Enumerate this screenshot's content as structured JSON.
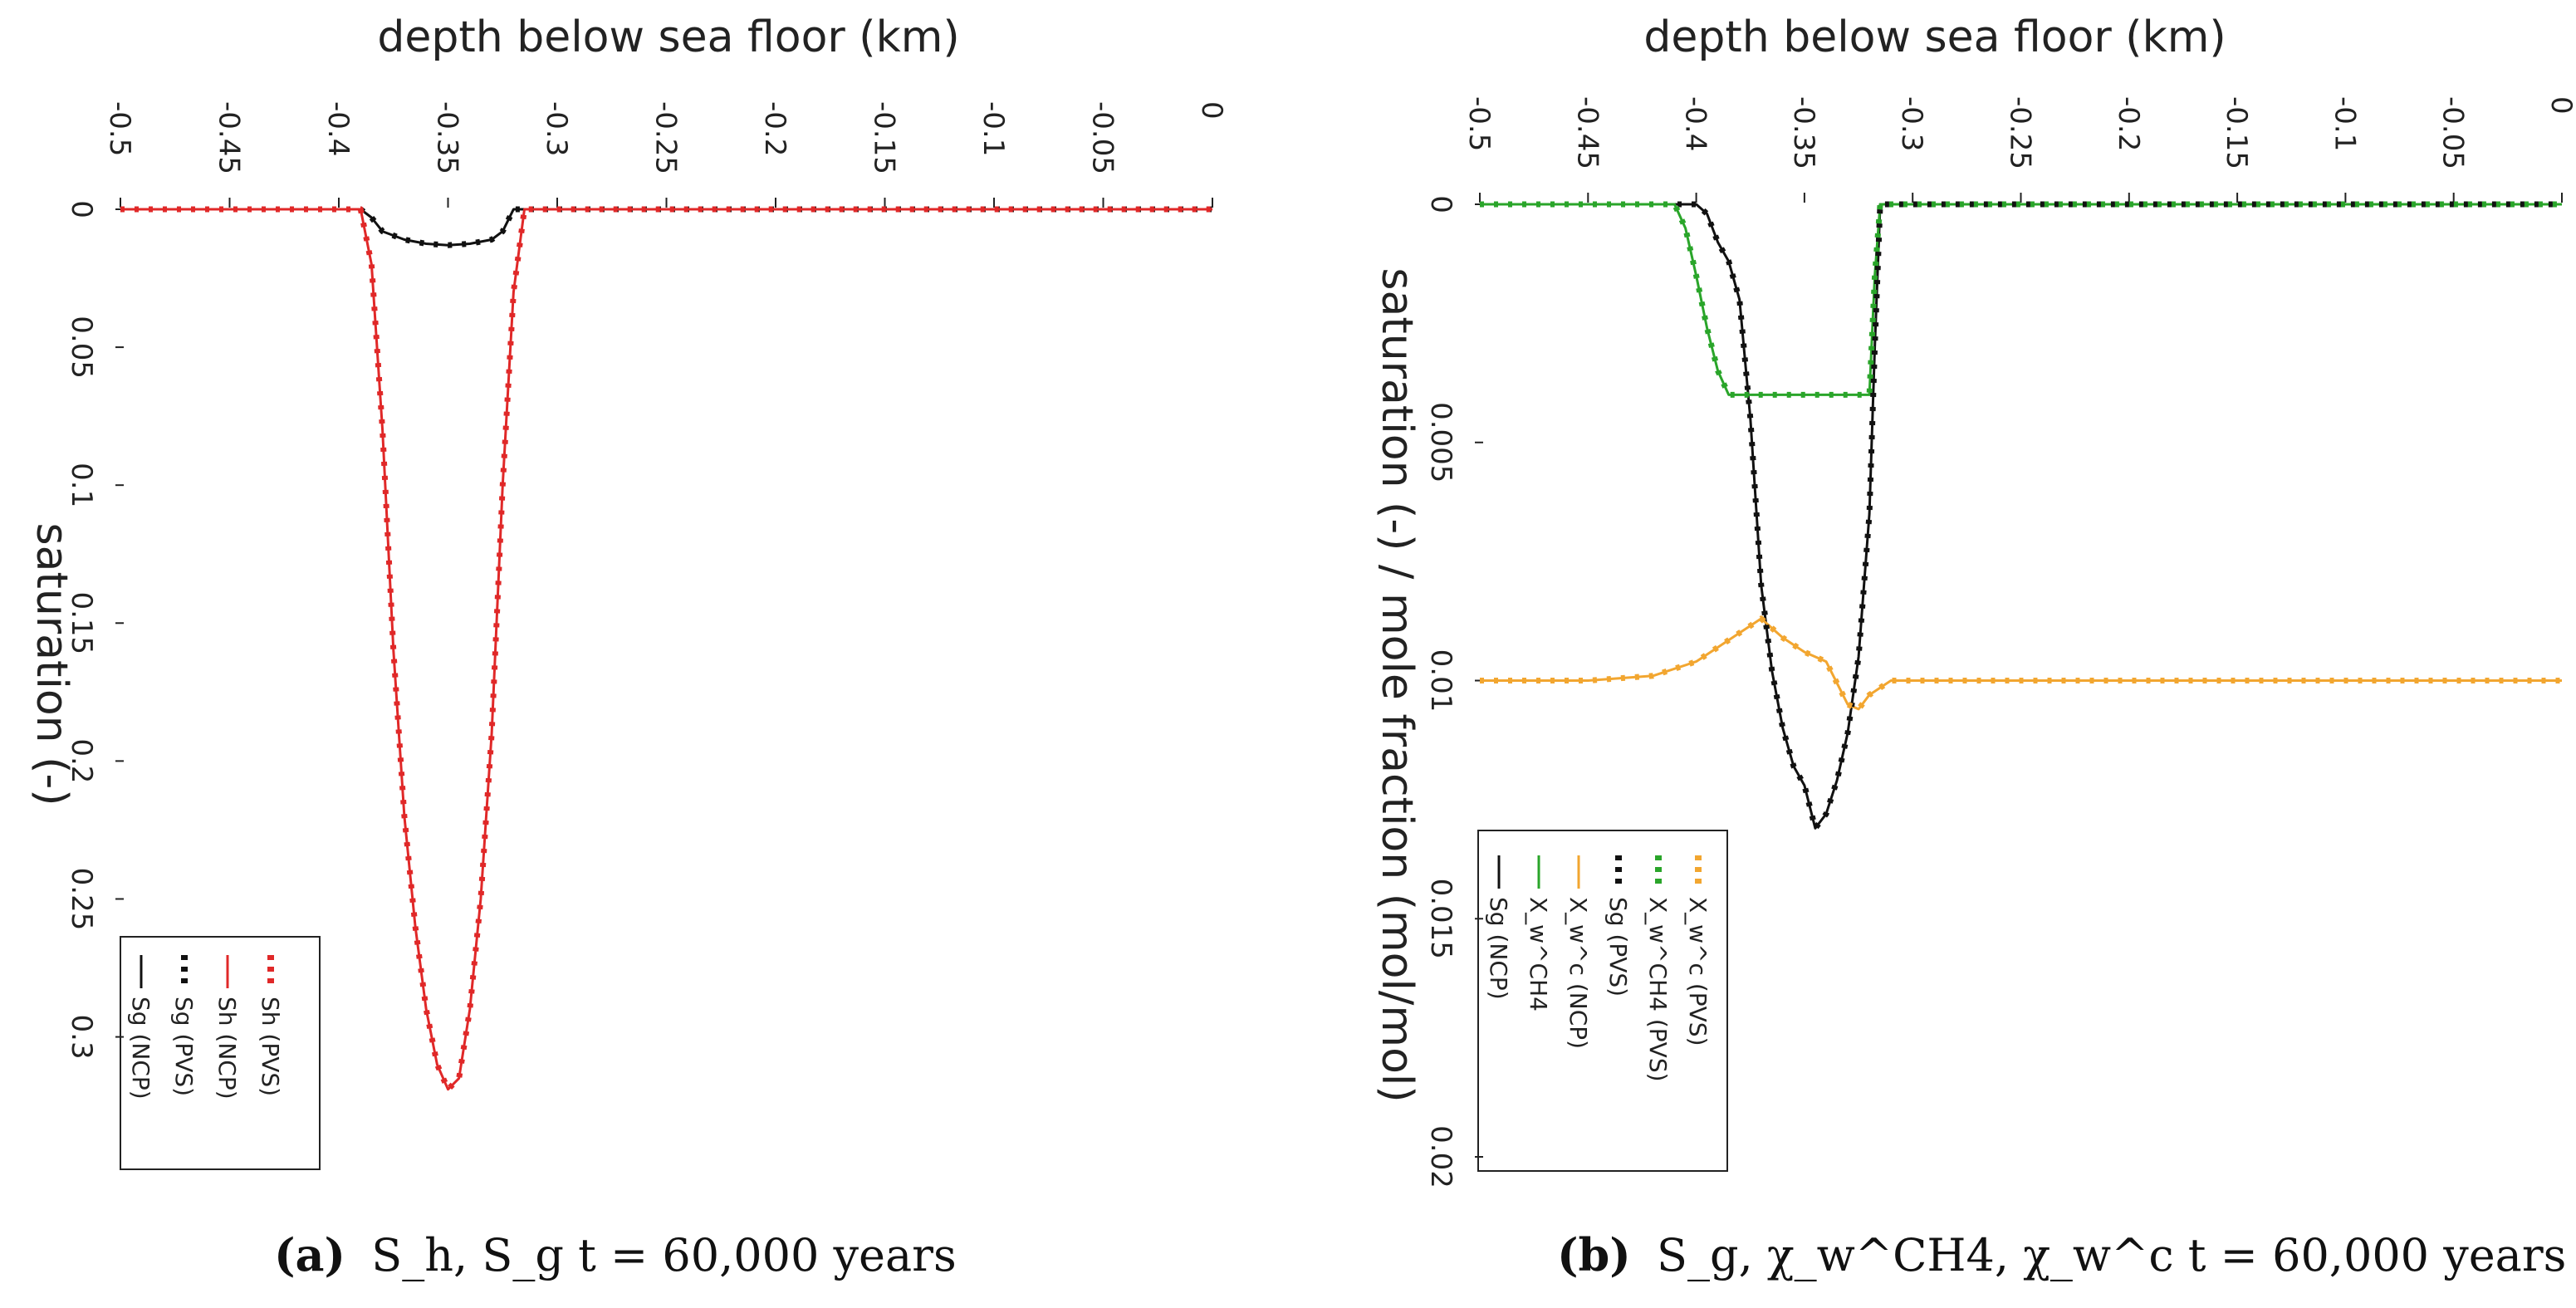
{
  "chart_data": [
    {
      "type": "line",
      "panel": "a",
      "xlabel": "depth below sea floor (km)",
      "ylabel": "saturation (-)",
      "xlim": [
        -0.5,
        0
      ],
      "ylim": [
        0,
        0.32
      ],
      "x_ticks": [
        -0.5,
        -0.45,
        -0.4,
        -0.35,
        -0.3,
        -0.25,
        -0.2,
        -0.15,
        -0.1,
        -0.05,
        0
      ],
      "x_tick_labels": [
        "-0.5",
        "-0.45",
        "-0.4",
        "-0.35",
        "-0.3",
        "-0.25",
        "-0.2",
        "-0.15",
        "-0.1",
        "-0.05",
        "0"
      ],
      "y_ticks": [
        0,
        0.05,
        0.1,
        0.15,
        0.2,
        0.25,
        0.3
      ],
      "y_tick_labels": [
        "0",
        "0.05",
        "0.1",
        "0.15",
        "0.2",
        "0.25",
        "0.3"
      ],
      "legend_position": "bottom-left",
      "series": [
        {
          "name": "Sg (NCP)",
          "color": "#111111",
          "style": "solid",
          "x": [
            -0.5,
            -0.39,
            -0.385,
            -0.38,
            -0.37,
            -0.36,
            -0.35,
            -0.34,
            -0.33,
            -0.325,
            -0.32,
            0
          ],
          "y": [
            0,
            0,
            0.003,
            0.008,
            0.011,
            0.0125,
            0.013,
            0.0125,
            0.011,
            0.008,
            0,
            0
          ]
        },
        {
          "name": "Sg (PVS)",
          "color": "#111111",
          "style": "dotted",
          "x": [
            -0.5,
            -0.39,
            -0.385,
            -0.38,
            -0.37,
            -0.36,
            -0.35,
            -0.34,
            -0.33,
            -0.325,
            -0.32,
            0
          ],
          "y": [
            0,
            0,
            0.003,
            0.008,
            0.011,
            0.0125,
            0.013,
            0.0125,
            0.011,
            0.008,
            0,
            0
          ]
        },
        {
          "name": "Sh (NCP)",
          "color": "#e02828",
          "style": "solid",
          "x": [
            -0.5,
            -0.39,
            -0.385,
            -0.38,
            -0.375,
            -0.37,
            -0.365,
            -0.36,
            -0.355,
            -0.35,
            -0.345,
            -0.34,
            -0.335,
            -0.33,
            -0.325,
            -0.32,
            -0.315,
            0
          ],
          "y": [
            0,
            0,
            0.02,
            0.08,
            0.16,
            0.22,
            0.26,
            0.29,
            0.31,
            0.319,
            0.315,
            0.29,
            0.25,
            0.19,
            0.1,
            0.03,
            0,
            0
          ]
        },
        {
          "name": "Sh (PVS)",
          "color": "#e02828",
          "style": "dotted",
          "x": [
            -0.5,
            -0.39,
            -0.385,
            -0.38,
            -0.375,
            -0.37,
            -0.365,
            -0.36,
            -0.355,
            -0.35,
            -0.345,
            -0.34,
            -0.335,
            -0.33,
            -0.325,
            -0.32,
            -0.315,
            0
          ],
          "y": [
            0,
            0,
            0.02,
            0.08,
            0.16,
            0.22,
            0.26,
            0.29,
            0.31,
            0.319,
            0.315,
            0.29,
            0.25,
            0.19,
            0.1,
            0.03,
            0,
            0
          ]
        }
      ]
    },
    {
      "type": "line",
      "panel": "b",
      "xlabel": "depth below sea floor (km)",
      "ylabel": "saturation (-) / mole fraction (mol/mol)",
      "xlim": [
        -0.5,
        0
      ],
      "ylim": [
        0,
        0.02
      ],
      "x_ticks": [
        -0.5,
        -0.45,
        -0.4,
        -0.35,
        -0.3,
        -0.25,
        -0.2,
        -0.15,
        -0.1,
        -0.05,
        0
      ],
      "x_tick_labels": [
        "-0.5",
        "-0.45",
        "-0.4",
        "-0.35",
        "-0.3",
        "-0.25",
        "-0.2",
        "-0.15",
        "-0.1",
        "-0.05",
        "0"
      ],
      "y_ticks": [
        0,
        0.005,
        0.01,
        0.015,
        0.02
      ],
      "y_tick_labels": [
        "0",
        "0.005",
        "0.01",
        "0.015",
        "0.02"
      ],
      "legend_position": "bottom-left",
      "series": [
        {
          "name": "Sg (NCP)",
          "color": "#111111",
          "style": "solid",
          "x": [
            -0.5,
            -0.4,
            -0.395,
            -0.39,
            -0.385,
            -0.38,
            -0.375,
            -0.37,
            -0.365,
            -0.36,
            -0.355,
            -0.35,
            -0.345,
            -0.34,
            -0.335,
            -0.33,
            -0.325,
            -0.32,
            -0.3175,
            -0.315,
            0
          ],
          "y": [
            0,
            0,
            0.0002,
            0.0008,
            0.0012,
            0.002,
            0.0045,
            0.008,
            0.0098,
            0.011,
            0.0118,
            0.0122,
            0.0131,
            0.0128,
            0.0121,
            0.0111,
            0.0095,
            0.0065,
            0.003,
            0,
            0
          ]
        },
        {
          "name": "X_w^CH4",
          "color": "#2aa52a",
          "style": "solid",
          "x": [
            -0.5,
            -0.41,
            -0.405,
            -0.4,
            -0.395,
            -0.39,
            -0.385,
            -0.38,
            -0.32,
            -0.3175,
            -0.315,
            0
          ],
          "y": [
            0,
            0,
            0.0005,
            0.0015,
            0.0026,
            0.0035,
            0.004,
            0.004,
            0.004,
            0.0015,
            0,
            0
          ]
        },
        {
          "name": "X_w^c (NCP)",
          "color": "#f2a630",
          "style": "solid",
          "x": [
            -0.5,
            -0.45,
            -0.42,
            -0.4,
            -0.39,
            -0.38,
            -0.37,
            -0.365,
            -0.36,
            -0.35,
            -0.34,
            -0.33,
            -0.325,
            -0.32,
            -0.31,
            0
          ],
          "y": [
            0.01,
            0.01,
            0.0099,
            0.0096,
            0.0093,
            0.009,
            0.0087,
            0.0089,
            0.0091,
            0.0094,
            0.0096,
            0.0105,
            0.0106,
            0.0103,
            0.01,
            0.01
          ]
        },
        {
          "name": "Sg (PVS)",
          "color": "#111111",
          "style": "dotted",
          "x": [
            -0.5,
            -0.4,
            -0.395,
            -0.39,
            -0.385,
            -0.38,
            -0.375,
            -0.37,
            -0.365,
            -0.36,
            -0.355,
            -0.35,
            -0.345,
            -0.34,
            -0.335,
            -0.33,
            -0.325,
            -0.32,
            -0.3175,
            -0.315,
            0
          ],
          "y": [
            0,
            0,
            0.0002,
            0.0008,
            0.0012,
            0.002,
            0.0045,
            0.008,
            0.0098,
            0.011,
            0.0118,
            0.0122,
            0.0131,
            0.0128,
            0.0121,
            0.0111,
            0.0095,
            0.0065,
            0.003,
            0,
            0
          ]
        },
        {
          "name": "X_w^CH4 (PVS)",
          "color": "#2aa52a",
          "style": "dotted",
          "x": [
            -0.5,
            -0.41,
            -0.405,
            -0.4,
            -0.395,
            -0.39,
            -0.385,
            -0.38,
            -0.32,
            -0.3175,
            -0.315,
            0
          ],
          "y": [
            0,
            0,
            0.0005,
            0.0015,
            0.0026,
            0.0035,
            0.004,
            0.004,
            0.004,
            0.0015,
            0,
            0
          ]
        },
        {
          "name": "X_w^c (PVS)",
          "color": "#f2a630",
          "style": "dotted",
          "x": [
            -0.5,
            -0.45,
            -0.42,
            -0.4,
            -0.39,
            -0.38,
            -0.37,
            -0.365,
            -0.36,
            -0.35,
            -0.34,
            -0.33,
            -0.325,
            -0.32,
            -0.31,
            0
          ],
          "y": [
            0.01,
            0.01,
            0.0099,
            0.0096,
            0.0093,
            0.009,
            0.0087,
            0.0089,
            0.0091,
            0.0094,
            0.0096,
            0.0105,
            0.0106,
            0.0103,
            0.01,
            0.01
          ]
        }
      ]
    }
  ],
  "captions": {
    "a": {
      "label": "(a)",
      "text": "S_h, S_g t = 60,000 years"
    },
    "b": {
      "label": "(b)",
      "text": "S_g, χ_w^CH4, χ_w^c t = 60,000 years"
    }
  }
}
